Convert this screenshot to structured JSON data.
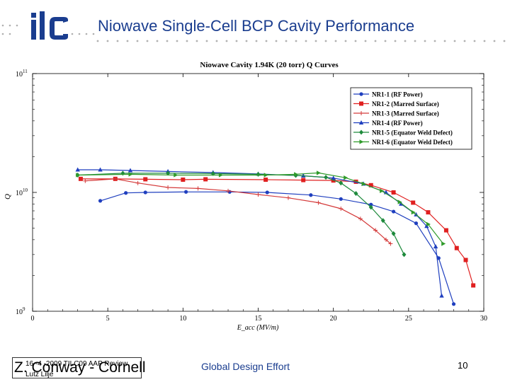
{
  "header": {
    "logo_text": "ilc",
    "title": "Niowave Single-Cell BCP Cavity Performance"
  },
  "footer": {
    "date": "16 -4 -2009 TILC09 AAP Review",
    "author": "Lutz Lilje",
    "speaker": "Z. Conway - Cornell",
    "center": "Global Design Effort",
    "page": "10"
  },
  "colors": {
    "brand_blue": "#1a3d8f",
    "dot_gray": "#b0b0b0"
  },
  "chart_data": {
    "type": "line",
    "title": "Niowave Cavity 1.94K (20 torr) Q Curves",
    "xlabel": "E_acc (MV/m)",
    "ylabel": "Q",
    "xlim": [
      0,
      30
    ],
    "ylim": [
      1000000000,
      100000000000
    ],
    "yscale": "log",
    "xticks": [
      "0",
      "5",
      "10",
      "15",
      "20",
      "25",
      "30"
    ],
    "yticks": [
      {
        "base": "10",
        "exp": "9",
        "value": 1000000000
      },
      {
        "base": "10",
        "exp": "10",
        "value": 10000000000
      },
      {
        "base": "10",
        "exp": "11",
        "value": 100000000000
      }
    ],
    "grid": false,
    "legend_position": "top-right",
    "series": [
      {
        "name": "NR1-1 (RF Power)",
        "color": "#1f3fbf",
        "marker": "circle",
        "x": [
          4.5,
          6.2,
          7.5,
          10.2,
          13.1,
          15.6,
          18.5,
          20.5,
          22.5,
          24.0,
          25.5,
          27.0,
          28.0
        ],
        "y": [
          8500000000.0,
          9900000000.0,
          10000000000.0,
          10100000000.0,
          10100000000.0,
          10000000000.0,
          9500000000.0,
          8800000000.0,
          7900000000.0,
          6900000000.0,
          5500000000.0,
          2800000000.0,
          1150000000.0
        ]
      },
      {
        "name": "NR1-2 (Marred Surface)",
        "color": "#e02020",
        "marker": "square",
        "x": [
          3.2,
          5.5,
          7.5,
          10.0,
          11.5,
          15.5,
          18.0,
          20.0,
          21.5,
          22.5,
          24.0,
          25.3,
          26.3,
          27.5,
          28.2,
          28.8,
          29.3
        ],
        "y": [
          13000000000.0,
          13000000000.0,
          12900000000.0,
          12800000000.0,
          12900000000.0,
          12800000000.0,
          12700000000.0,
          12600000000.0,
          12300000000.0,
          11500000000.0,
          10000000000.0,
          8200000000.0,
          6800000000.0,
          4800000000.0,
          3400000000.0,
          2700000000.0,
          1650000000.0
        ]
      },
      {
        "name": "NR1-3 (Marred Surface)",
        "color": "#d43a3a",
        "marker": "plus",
        "x": [
          3.5,
          5.5,
          7.0,
          9.0,
          11.0,
          13.0,
          15.0,
          17.0,
          19.0,
          20.5,
          21.8,
          22.8,
          23.5,
          23.8
        ],
        "y": [
          12500000000.0,
          13000000000.0,
          12000000000.0,
          11000000000.0,
          10800000000.0,
          10300000000.0,
          9600000000.0,
          9000000000.0,
          8200000000.0,
          7300000000.0,
          6000000000.0,
          4800000000.0,
          4000000000.0,
          3700000000.0
        ]
      },
      {
        "name": "NR1-4 (RF Power)",
        "color": "#1f3fbf",
        "marker": "triangle-up",
        "x": [
          3.0,
          4.5,
          6.5,
          9.0,
          12.0,
          15.0,
          18.0,
          20.0,
          22.0,
          23.5,
          24.5,
          25.5,
          26.2,
          26.8,
          27.2
        ],
        "y": [
          15500000000.0,
          15500000000.0,
          15300000000.0,
          15000000000.0,
          14700000000.0,
          14300000000.0,
          13800000000.0,
          13200000000.0,
          11800000000.0,
          10000000000.0,
          8000000000.0,
          6500000000.0,
          5200000000.0,
          3500000000.0,
          1350000000.0
        ]
      },
      {
        "name": "NR1-5 (Equator Weld Defect)",
        "color": "#1e8a3c",
        "marker": "diamond",
        "x": [
          3.0,
          6.0,
          9.0,
          12.0,
          15.0,
          17.5,
          19.5,
          20.5,
          21.5,
          22.5,
          23.3,
          24.0,
          24.7
        ],
        "y": [
          14000000000.0,
          14500000000.0,
          14500000000.0,
          14400000000.0,
          14200000000.0,
          13900000000.0,
          13400000000.0,
          12000000000.0,
          9800000000.0,
          7500000000.0,
          5800000000.0,
          4500000000.0,
          3000000000.0
        ]
      },
      {
        "name": "NR1-6 (Equator Weld Defect)",
        "color": "#2f9a2a",
        "marker": "triangle-right",
        "x": [
          3.0,
          6.5,
          9.5,
          12.5,
          15.5,
          17.5,
          19.0,
          20.8,
          22.0,
          23.2,
          24.4,
          25.3,
          26.3,
          27.3
        ],
        "y": [
          14000000000.0,
          14200000000.0,
          14000000000.0,
          14000000000.0,
          14000000000.0,
          14200000000.0,
          14600000000.0,
          13300000000.0,
          11800000000.0,
          10300000000.0,
          8300000000.0,
          6800000000.0,
          5400000000.0,
          3700000000.0
        ]
      }
    ]
  }
}
